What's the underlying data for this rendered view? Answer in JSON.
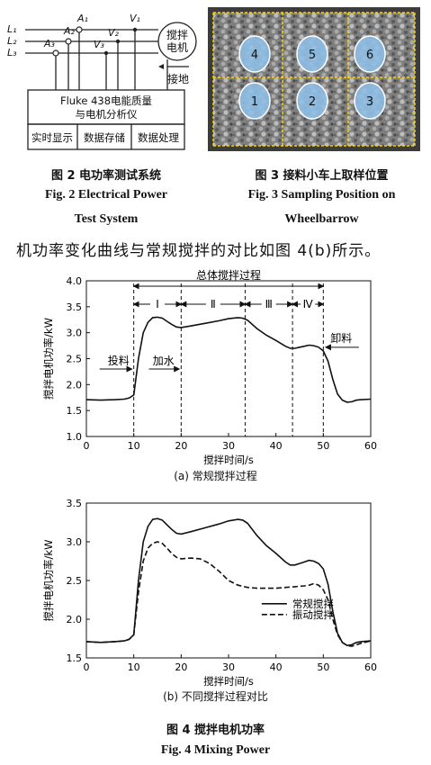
{
  "fig2": {
    "labels": {
      "L1": "L₁",
      "L2": "L₂",
      "L3": "L₃",
      "A1": "A₁",
      "A2": "A₂",
      "A3": "A₃",
      "V1": "V₁",
      "V2": "V₂",
      "V3": "V₃"
    },
    "motor": [
      "搅拌",
      "电机"
    ],
    "ground": "接地",
    "analyzer": [
      "Fluke 438电能质量",
      "与电机分析仪"
    ],
    "functions": [
      "实时显示",
      "数据存储",
      "数据处理"
    ],
    "caption_cn": "图 2   电功率测试系统",
    "caption_en_1": "Fig. 2    Electrical Power",
    "caption_en_2": "Test System"
  },
  "fig3": {
    "positions": [
      "4",
      "5",
      "6",
      "1",
      "2",
      "3"
    ],
    "caption_cn": "图 3   接料小车上取样位置",
    "caption_en_1": "Fig. 3    Sampling Position on",
    "caption_en_2": "Wheelbarrow"
  },
  "body_text": "机功率变化曲线与常规搅拌的对比如图 4(b)所示。",
  "fig4": {
    "caption_cn": "图 4   搅拌电机功率",
    "caption_en": "Fig. 4    Mixing Power",
    "chart_a_caption": "(a)   常规搅拌过程",
    "chart_b_caption": "(b)   不同搅拌过程对比"
  },
  "chart_data": [
    {
      "type": "line",
      "xlabel": "搅拌时间/s",
      "ylabel": "搅拌电机功率/kW",
      "xlim": [
        0,
        60
      ],
      "ylim": [
        1.0,
        4.0
      ],
      "xticks": [
        0,
        10,
        20,
        30,
        40,
        50,
        60
      ],
      "yticks": [
        "1.0",
        "1.5",
        "2.0",
        "2.5",
        "3.0",
        "3.5",
        "4.0"
      ],
      "series": [
        {
          "x": [
            0,
            3,
            6,
            8,
            9,
            10,
            11,
            12,
            13,
            14,
            15,
            16,
            17,
            18,
            19,
            20,
            22,
            25,
            28,
            30,
            32,
            33,
            34,
            36,
            38,
            40,
            42,
            43,
            44,
            45,
            46,
            47,
            48,
            49,
            50,
            51,
            52,
            53,
            54,
            55,
            56,
            57,
            58,
            60
          ],
          "values": [
            1.71,
            1.7,
            1.71,
            1.72,
            1.74,
            1.8,
            2.5,
            3.0,
            3.2,
            3.29,
            3.3,
            3.28,
            3.22,
            3.16,
            3.11,
            3.1,
            3.13,
            3.18,
            3.23,
            3.27,
            3.29,
            3.28,
            3.24,
            3.08,
            2.95,
            2.85,
            2.74,
            2.7,
            2.7,
            2.72,
            2.74,
            2.76,
            2.75,
            2.72,
            2.65,
            2.45,
            2.1,
            1.82,
            1.7,
            1.66,
            1.67,
            1.7,
            1.71,
            1.72
          ]
        }
      ],
      "vlines": [
        10,
        20,
        33.5,
        43.5,
        50
      ],
      "annotations": {
        "total": "总体搅拌过程",
        "stages": [
          "Ⅰ",
          "Ⅱ",
          "Ⅲ",
          "Ⅳ"
        ],
        "feed": "投料",
        "water": "加水",
        "discharge": "卸料"
      }
    },
    {
      "type": "line",
      "xlabel": "搅拌时间/s",
      "ylabel": "搅拌电机功率/kW",
      "xlim": [
        0,
        60
      ],
      "ylim": [
        1.5,
        3.5
      ],
      "xticks": [
        0,
        10,
        20,
        30,
        40,
        50,
        60
      ],
      "yticks": [
        "1.5",
        "2.0",
        "2.5",
        "3.0",
        "3.5"
      ],
      "legend_position": "center-right",
      "series": [
        {
          "name": "常规搅拌",
          "x": [
            0,
            3,
            6,
            8,
            9,
            10,
            11,
            12,
            13,
            14,
            15,
            16,
            17,
            18,
            19,
            20,
            22,
            25,
            28,
            30,
            32,
            33,
            34,
            36,
            38,
            40,
            42,
            43,
            44,
            45,
            46,
            47,
            48,
            49,
            50,
            51,
            52,
            53,
            54,
            55,
            56,
            57,
            58,
            60
          ],
          "values": [
            1.71,
            1.7,
            1.71,
            1.72,
            1.74,
            1.8,
            2.5,
            3.0,
            3.2,
            3.29,
            3.3,
            3.28,
            3.22,
            3.16,
            3.11,
            3.1,
            3.13,
            3.18,
            3.23,
            3.27,
            3.29,
            3.28,
            3.24,
            3.08,
            2.95,
            2.85,
            2.74,
            2.7,
            2.7,
            2.72,
            2.74,
            2.76,
            2.75,
            2.72,
            2.65,
            2.45,
            2.1,
            1.82,
            1.7,
            1.66,
            1.67,
            1.7,
            1.71,
            1.72
          ]
        },
        {
          "name": "振动搅拌",
          "x": [
            0,
            3,
            6,
            8,
            9,
            10,
            11,
            12,
            13,
            14,
            15,
            16,
            17,
            18,
            19,
            20,
            22,
            24,
            26,
            28,
            30,
            32,
            34,
            36,
            38,
            40,
            42,
            44,
            46,
            47,
            48,
            49,
            50,
            51,
            52,
            53,
            54,
            55,
            56,
            57,
            58,
            60
          ],
          "values": [
            1.71,
            1.7,
            1.71,
            1.72,
            1.74,
            1.8,
            2.35,
            2.75,
            2.92,
            2.98,
            3.0,
            2.98,
            2.92,
            2.85,
            2.8,
            2.78,
            2.79,
            2.78,
            2.72,
            2.62,
            2.5,
            2.44,
            2.41,
            2.4,
            2.4,
            2.4,
            2.41,
            2.42,
            2.43,
            2.44,
            2.46,
            2.44,
            2.38,
            2.25,
            2.0,
            1.8,
            1.7,
            1.66,
            1.65,
            1.67,
            1.69,
            1.72
          ]
        }
      ]
    }
  ]
}
